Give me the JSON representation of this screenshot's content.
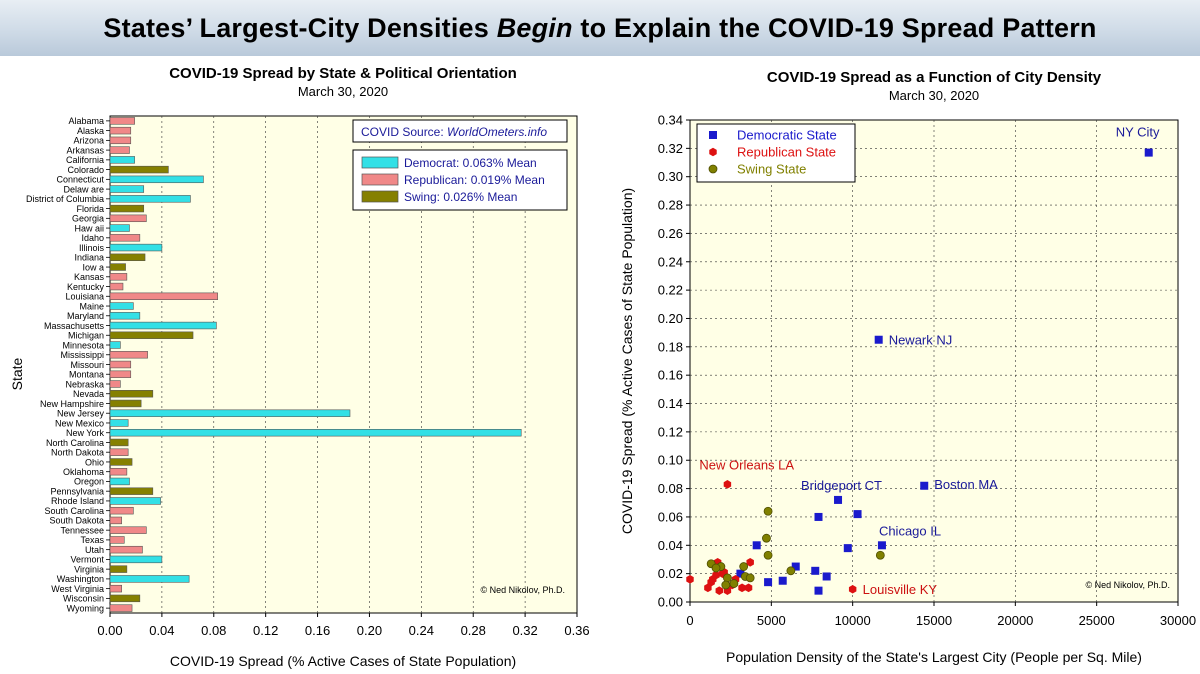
{
  "banner": {
    "title_part1": "States’ Largest-City Densities ",
    "title_emphasis": "Begin",
    "title_part2": " to Explain the COVID-19 Spread Pattern"
  },
  "chart_data": [
    {
      "type": "bar",
      "orientation": "horizontal",
      "title": "COVID-19 Spread by State & Political Orientation",
      "subtitle": "March 30, 2020",
      "xlabel": "COVID-19 Spread (% Active Cases of State Population)",
      "ylabel": "State",
      "xlim": [
        0,
        0.36
      ],
      "xticks": [
        "0.00",
        "0.04",
        "0.08",
        "0.12",
        "0.16",
        "0.20",
        "0.24",
        "0.28",
        "0.32",
        "0.36"
      ],
      "source_note": "COVID Source: ",
      "source_site": "WorldOmeters.info",
      "credit": "© Ned Nikolov, Ph.D.",
      "legend": [
        {
          "key": "D",
          "label": "Democrat: 0.063% Mean",
          "color": "#33e0e6"
        },
        {
          "key": "R",
          "label": "Republican: 0.019% Mean",
          "color": "#f08888"
        },
        {
          "key": "S",
          "label": "Swing: 0.026% Mean",
          "color": "#858000"
        }
      ],
      "categories": [
        "Alabama",
        "Alaska",
        "Arizona",
        "Arkansas",
        "California",
        "Colorado",
        "Connecticut",
        "Delaware",
        "District of Columbia",
        "Florida",
        "Georgia",
        "Hawaii",
        "Idaho",
        "Illinois",
        "Indiana",
        "Iowa",
        "Kansas",
        "Kentucky",
        "Louisiana",
        "Maine",
        "Maryland",
        "Massachusetts",
        "Michigan",
        "Minnesota",
        "Mississippi",
        "Missouri",
        "Montana",
        "Nebraska",
        "Nevada",
        "New Hampshire",
        "New Jersey",
        "New Mexico",
        "New York",
        "North Carolina",
        "North Dakota",
        "Ohio",
        "Oklahoma",
        "Oregon",
        "Pennsylvania",
        "Rhode Island",
        "South Carolina",
        "South Dakota",
        "Tennessee",
        "Texas",
        "Utah",
        "Vermont",
        "Virginia",
        "Washington",
        "West Virginia",
        "Wisconsin",
        "Wyoming"
      ],
      "category_labels": [
        "Alabama",
        "Alaska",
        "Arizona",
        "Arkansas",
        "California",
        "Colorado",
        "Connecticut",
        "Delaw are",
        "District of Columbia",
        "Florida",
        "Georgia",
        "Haw aii",
        "Idaho",
        "Illinois",
        "Indiana",
        "Iow a",
        "Kansas",
        "Kentucky",
        "Louisiana",
        "Maine",
        "Maryland",
        "Massachusetts",
        "Michigan",
        "Minnesota",
        "Mississippi",
        "Missouri",
        "Montana",
        "Nebraska",
        "Nevada",
        "New Hampshire",
        "New Jersey",
        "New Mexico",
        "New York",
        "North Carolina",
        "North Dakota",
        "Ohio",
        "Oklahoma",
        "Oregon",
        "Pennsylvania",
        "Rhode Island",
        "South Carolina",
        "South Dakota",
        "Tennessee",
        "Texas",
        "Utah",
        "Vermont",
        "Virginia",
        "Washington",
        "West Virginia",
        "Wisconsin",
        "Wyoming"
      ],
      "values": [
        0.019,
        0.016,
        0.016,
        0.015,
        0.019,
        0.045,
        0.072,
        0.026,
        0.062,
        0.026,
        0.028,
        0.015,
        0.023,
        0.04,
        0.027,
        0.012,
        0.013,
        0.01,
        0.083,
        0.018,
        0.023,
        0.082,
        0.064,
        0.008,
        0.029,
        0.016,
        0.016,
        0.008,
        0.033,
        0.024,
        0.185,
        0.014,
        0.317,
        0.014,
        0.014,
        0.017,
        0.013,
        0.015,
        0.033,
        0.039,
        0.018,
        0.009,
        0.028,
        0.011,
        0.025,
        0.04,
        0.013,
        0.061,
        0.009,
        0.023,
        0.017
      ],
      "groups": [
        "R",
        "R",
        "R",
        "R",
        "D",
        "S",
        "D",
        "D",
        "D",
        "S",
        "R",
        "D",
        "R",
        "D",
        "S",
        "S",
        "R",
        "R",
        "R",
        "D",
        "D",
        "D",
        "S",
        "D",
        "R",
        "R",
        "R",
        "R",
        "S",
        "S",
        "D",
        "D",
        "D",
        "S",
        "R",
        "S",
        "R",
        "D",
        "S",
        "D",
        "R",
        "R",
        "R",
        "R",
        "R",
        "D",
        "S",
        "D",
        "R",
        "S",
        "R"
      ]
    },
    {
      "type": "scatter",
      "title": "COVID-19 Spread as a Function of City Density",
      "subtitle": "March 30, 2020",
      "xlabel": "Population Density of the State's Largest City  (People per Sq. Mile)",
      "ylabel": "COVID-19 Spread (% Active Cases of State Population)",
      "xlim": [
        0,
        30000
      ],
      "ylim": [
        0,
        0.34
      ],
      "xticks": [
        "0",
        "5000",
        "10000",
        "15000",
        "20000",
        "25000",
        "30000"
      ],
      "yticks": [
        "0.00",
        "0.02",
        "0.04",
        "0.06",
        "0.08",
        "0.10",
        "0.12",
        "0.14",
        "0.16",
        "0.18",
        "0.20",
        "0.22",
        "0.24",
        "0.26",
        "0.28",
        "0.30",
        "0.32",
        "0.34"
      ],
      "credit": "© Ned Nikolov, Ph.D.",
      "legend": [
        {
          "key": "D",
          "label": "Democratic State",
          "color": "#1a1acc"
        },
        {
          "key": "R",
          "label": "Republican State",
          "color": "#dd1111"
        },
        {
          "key": "S",
          "label": "Swing State",
          "color": "#808000"
        }
      ],
      "series": [
        {
          "name": "Democratic State",
          "key": "D",
          "points": [
            [
              28200,
              0.317
            ],
            [
              11600,
              0.185
            ],
            [
              14400,
              0.082
            ],
            [
              9100,
              0.072
            ],
            [
              7900,
              0.06
            ],
            [
              10300,
              0.062
            ],
            [
              11800,
              0.04
            ],
            [
              9700,
              0.038
            ],
            [
              4100,
              0.04
            ],
            [
              6500,
              0.025
            ],
            [
              7700,
              0.022
            ],
            [
              8400,
              0.018
            ],
            [
              5700,
              0.015
            ],
            [
              4800,
              0.014
            ],
            [
              7900,
              0.008
            ],
            [
              3100,
              0.02
            ]
          ]
        },
        {
          "name": "Republican State",
          "key": "R",
          "points": [
            [
              2300,
              0.083
            ],
            [
              10000,
              0.009
            ],
            [
              0,
              0.016
            ],
            [
              1300,
              0.014
            ],
            [
              1700,
              0.028
            ],
            [
              1600,
              0.019
            ],
            [
              1100,
              0.01
            ],
            [
              2600,
              0.012
            ],
            [
              3200,
              0.01
            ],
            [
              3600,
              0.01
            ],
            [
              1800,
              0.008
            ],
            [
              2300,
              0.008
            ],
            [
              3700,
              0.028
            ],
            [
              2000,
              0.02
            ],
            [
              2800,
              0.016
            ],
            [
              1400,
              0.016
            ],
            [
              2100,
              0.021
            ]
          ]
        },
        {
          "name": "Swing State",
          "key": "S",
          "points": [
            [
              4800,
              0.064
            ],
            [
              4700,
              0.045
            ],
            [
              4800,
              0.033
            ],
            [
              3300,
              0.025
            ],
            [
              6200,
              0.022
            ],
            [
              11700,
              0.033
            ],
            [
              1300,
              0.027
            ],
            [
              1900,
              0.025
            ],
            [
              2300,
              0.017
            ],
            [
              2700,
              0.013
            ],
            [
              3400,
              0.018
            ],
            [
              3700,
              0.017
            ],
            [
              2200,
              0.012
            ],
            [
              1600,
              0.024
            ]
          ]
        }
      ],
      "annotations": [
        {
          "text": "NY City",
          "x": 28200,
          "y": 0.317,
          "color": "#1a1a99"
        },
        {
          "text": "Newark NJ",
          "x": 11600,
          "y": 0.185,
          "color": "#1a1a99"
        },
        {
          "text": "Boston MA",
          "x": 14400,
          "y": 0.082,
          "color": "#1a1a99"
        },
        {
          "text": "Bridgeport CT",
          "x": 9100,
          "y": 0.072,
          "color": "#1a1a99"
        },
        {
          "text": "Chicago IL",
          "x": 11800,
          "y": 0.04,
          "color": "#1a1a99"
        },
        {
          "text": "New Orleans LA",
          "x": 2300,
          "y": 0.083,
          "color": "#cc1111"
        },
        {
          "text": "Louisville KY",
          "x": 10000,
          "y": 0.009,
          "color": "#cc1111"
        }
      ]
    }
  ]
}
